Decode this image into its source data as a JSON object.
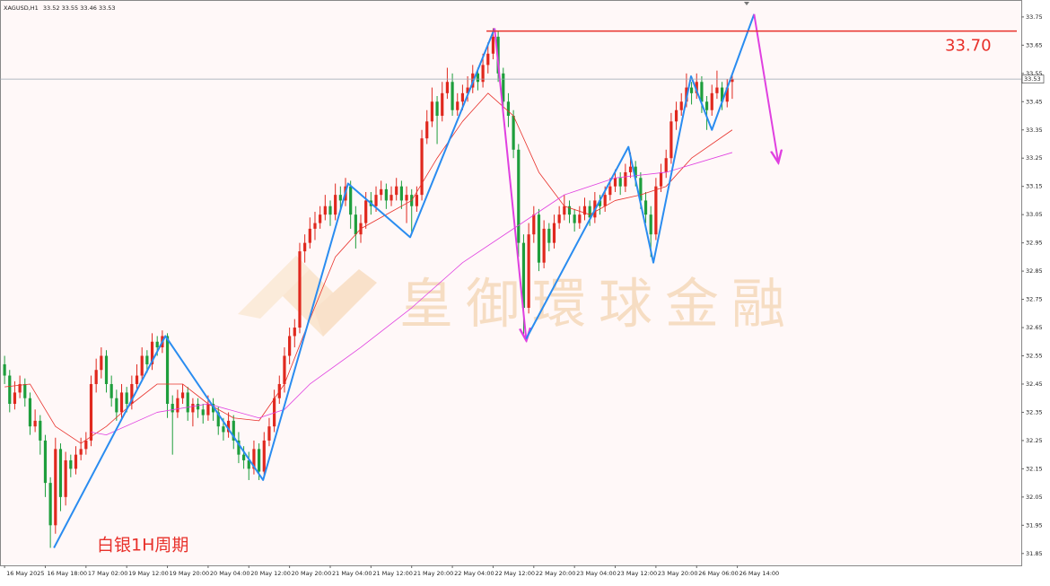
{
  "chart_data": {
    "type": "candlestick",
    "symbol": "XAGUSD,H1",
    "ylim": [
      31.808,
      33.81
    ],
    "yticks": [
      31.85,
      31.95,
      32.05,
      32.15,
      32.25,
      32.35,
      32.45,
      32.55,
      32.65,
      32.75,
      32.85,
      32.95,
      33.05,
      33.15,
      33.25,
      33.35,
      33.45,
      33.55,
      33.65,
      33.75
    ],
    "xlim": [
      -0.9,
      199.8
    ],
    "xticks": [
      {
        "value": 0,
        "label": "16 May 2025"
      },
      {
        "value": 8,
        "label": "16 May 18:00"
      },
      {
        "value": 16,
        "label": "17 May 02:00"
      },
      {
        "value": 24,
        "label": "19 May 12:00"
      },
      {
        "value": 32,
        "label": "19 May 20:00"
      },
      {
        "value": 40,
        "label": "20 May 04:00"
      },
      {
        "value": 48,
        "label": "20 May 12:00"
      },
      {
        "value": 56,
        "label": "20 May 20:00"
      },
      {
        "value": 64,
        "label": "21 May 04:00"
      },
      {
        "value": 72,
        "label": "21 May 12:00"
      },
      {
        "value": 80,
        "label": "21 May 20:00"
      },
      {
        "value": 88,
        "label": "22 May 04:00"
      },
      {
        "value": 96,
        "label": "22 May 12:00"
      },
      {
        "value": 104,
        "label": "22 May 20:00"
      },
      {
        "value": 112,
        "label": "23 May 04:00"
      },
      {
        "value": 120,
        "label": "23 May 12:00"
      },
      {
        "value": 128,
        "label": "23 May 20:00"
      },
      {
        "value": 136,
        "label": "26 May 06:00"
      },
      {
        "value": 144,
        "label": "26 May 14:00"
      }
    ],
    "up_color": "#e0281e",
    "down_color": "#1e9e3c",
    "candles": [
      [
        32.52,
        32.55,
        32.45,
        32.48
      ],
      [
        32.48,
        32.5,
        32.35,
        32.38
      ],
      [
        32.38,
        32.46,
        32.36,
        32.42
      ],
      [
        32.42,
        32.48,
        32.4,
        32.45
      ],
      [
        32.45,
        32.47,
        32.37,
        32.4
      ],
      [
        32.4,
        32.42,
        32.27,
        32.3
      ],
      [
        32.3,
        32.36,
        32.28,
        32.32
      ],
      [
        32.32,
        32.34,
        32.2,
        32.25
      ],
      [
        32.25,
        32.27,
        32.05,
        32.1
      ],
      [
        32.1,
        32.12,
        31.87,
        31.95
      ],
      [
        31.95,
        32.26,
        31.92,
        32.22
      ],
      [
        32.22,
        32.24,
        32.0,
        32.05
      ],
      [
        32.05,
        32.21,
        32.02,
        32.18
      ],
      [
        32.18,
        32.2,
        32.12,
        32.15
      ],
      [
        32.15,
        32.23,
        32.13,
        32.2
      ],
      [
        32.2,
        32.26,
        32.18,
        32.22
      ],
      [
        32.22,
        32.28,
        32.2,
        32.25
      ],
      [
        32.25,
        32.48,
        32.23,
        32.45
      ],
      [
        32.45,
        32.54,
        32.42,
        32.5
      ],
      [
        32.5,
        32.58,
        32.47,
        32.55
      ],
      [
        32.55,
        32.57,
        32.42,
        32.45
      ],
      [
        32.45,
        32.48,
        32.37,
        32.4
      ],
      [
        32.4,
        32.43,
        32.32,
        32.35
      ],
      [
        32.35,
        32.45,
        32.33,
        32.42
      ],
      [
        32.42,
        32.44,
        32.35,
        32.38
      ],
      [
        32.38,
        32.48,
        32.36,
        32.45
      ],
      [
        32.45,
        32.52,
        32.43,
        32.48
      ],
      [
        32.48,
        32.58,
        32.46,
        32.55
      ],
      [
        32.55,
        32.57,
        32.49,
        32.52
      ],
      [
        32.52,
        32.63,
        32.5,
        32.6
      ],
      [
        32.6,
        32.62,
        32.55,
        32.58
      ],
      [
        32.58,
        32.64,
        32.56,
        32.62
      ],
      [
        32.62,
        32.63,
        32.33,
        32.38
      ],
      [
        32.38,
        32.41,
        32.2,
        32.35
      ],
      [
        32.35,
        32.43,
        32.33,
        32.4
      ],
      [
        32.4,
        32.45,
        32.38,
        32.42
      ],
      [
        32.42,
        32.44,
        32.32,
        32.35
      ],
      [
        32.35,
        32.4,
        32.3,
        32.38
      ],
      [
        32.38,
        32.4,
        32.33,
        32.36
      ],
      [
        32.36,
        32.38,
        32.31,
        32.34
      ],
      [
        32.34,
        32.41,
        32.32,
        32.38
      ],
      [
        32.38,
        32.4,
        32.32,
        32.35
      ],
      [
        32.35,
        32.37,
        32.27,
        32.3
      ],
      [
        32.3,
        32.33,
        32.25,
        32.28
      ],
      [
        32.28,
        32.35,
        32.26,
        32.32
      ],
      [
        32.32,
        32.34,
        32.22,
        32.25
      ],
      [
        32.25,
        32.28,
        32.17,
        32.2
      ],
      [
        32.2,
        32.23,
        32.15,
        32.18
      ],
      [
        32.18,
        32.21,
        32.11,
        32.15
      ],
      [
        32.15,
        32.25,
        32.13,
        32.22
      ],
      [
        32.22,
        32.24,
        32.11,
        32.14
      ],
      [
        32.14,
        32.28,
        32.12,
        32.25
      ],
      [
        32.25,
        32.33,
        32.23,
        32.3
      ],
      [
        32.3,
        32.43,
        32.28,
        32.4
      ],
      [
        32.4,
        32.48,
        32.38,
        32.45
      ],
      [
        32.45,
        32.58,
        32.42,
        32.55
      ],
      [
        32.55,
        32.65,
        32.52,
        32.62
      ],
      [
        32.62,
        32.68,
        32.58,
        32.65
      ],
      [
        32.65,
        32.95,
        32.63,
        32.92
      ],
      [
        32.92,
        32.98,
        32.88,
        32.95
      ],
      [
        32.95,
        33.04,
        32.93,
        33.0
      ],
      [
        33.0,
        33.06,
        32.96,
        33.02
      ],
      [
        33.02,
        33.08,
        33.0,
        33.05
      ],
      [
        33.05,
        33.12,
        33.03,
        33.08
      ],
      [
        33.08,
        33.1,
        33.01,
        33.05
      ],
      [
        33.05,
        33.16,
        33.03,
        33.12
      ],
      [
        33.12,
        33.15,
        33.06,
        33.1
      ],
      [
        33.1,
        33.18,
        33.08,
        33.15
      ],
      [
        33.15,
        33.17,
        33.0,
        33.05
      ],
      [
        33.05,
        33.08,
        32.93,
        32.98
      ],
      [
        32.98,
        33.05,
        32.95,
        33.02
      ],
      [
        33.02,
        33.13,
        33.0,
        33.1
      ],
      [
        33.1,
        33.13,
        33.05,
        33.08
      ],
      [
        33.08,
        33.15,
        33.06,
        33.12
      ],
      [
        33.12,
        33.17,
        33.1,
        33.14
      ],
      [
        33.14,
        33.16,
        33.07,
        33.1
      ],
      [
        33.1,
        33.15,
        33.08,
        33.12
      ],
      [
        33.12,
        33.18,
        33.1,
        33.15
      ],
      [
        33.15,
        33.17,
        33.07,
        33.1
      ],
      [
        33.1,
        33.15,
        33.02,
        33.12
      ],
      [
        33.12,
        33.14,
        32.98,
        33.08
      ],
      [
        33.08,
        33.15,
        33.06,
        33.12
      ],
      [
        33.12,
        33.35,
        33.1,
        33.32
      ],
      [
        33.32,
        33.42,
        33.3,
        33.38
      ],
      [
        33.38,
        33.5,
        33.36,
        33.45
      ],
      [
        33.45,
        33.47,
        33.3,
        33.4
      ],
      [
        33.4,
        33.52,
        33.38,
        33.48
      ],
      [
        33.48,
        33.57,
        33.46,
        33.52
      ],
      [
        33.52,
        33.55,
        33.4,
        33.42
      ],
      [
        33.42,
        33.48,
        33.4,
        33.45
      ],
      [
        33.45,
        33.51,
        33.42,
        33.48
      ],
      [
        33.48,
        33.54,
        33.45,
        33.5
      ],
      [
        33.5,
        33.58,
        33.48,
        33.55
      ],
      [
        33.55,
        33.57,
        33.49,
        33.52
      ],
      [
        33.52,
        33.62,
        33.5,
        33.58
      ],
      [
        33.58,
        33.66,
        33.55,
        33.62
      ],
      [
        33.62,
        33.71,
        33.6,
        33.68
      ],
      [
        33.68,
        33.7,
        33.52,
        33.55
      ],
      [
        33.55,
        33.57,
        33.42,
        33.45
      ],
      [
        33.45,
        33.48,
        33.36,
        33.4
      ],
      [
        33.4,
        33.42,
        33.25,
        33.28
      ],
      [
        33.28,
        33.3,
        32.9,
        32.95
      ],
      [
        32.95,
        32.98,
        32.62,
        32.72
      ],
      [
        32.72,
        33.02,
        32.7,
        32.98
      ],
      [
        32.98,
        33.08,
        32.95,
        33.05
      ],
      [
        33.05,
        33.07,
        32.85,
        32.88
      ],
      [
        32.88,
        33.03,
        32.86,
        33.0
      ],
      [
        33.0,
        33.02,
        32.92,
        32.95
      ],
      [
        32.95,
        33.05,
        32.93,
        33.02
      ],
      [
        33.02,
        33.08,
        33.0,
        33.05
      ],
      [
        33.05,
        33.12,
        33.03,
        33.08
      ],
      [
        33.08,
        33.1,
        33.02,
        33.05
      ],
      [
        33.05,
        33.07,
        32.99,
        33.02
      ],
      [
        33.02,
        33.08,
        33.0,
        33.05
      ],
      [
        33.05,
        33.11,
        33.03,
        33.08
      ],
      [
        33.08,
        33.1,
        33.01,
        33.04
      ],
      [
        33.04,
        33.13,
        33.02,
        33.1
      ],
      [
        33.1,
        33.12,
        33.05,
        33.08
      ],
      [
        33.08,
        33.15,
        33.06,
        33.12
      ],
      [
        33.12,
        33.18,
        33.1,
        33.15
      ],
      [
        33.15,
        33.21,
        33.13,
        33.18
      ],
      [
        33.18,
        33.2,
        33.12,
        33.15
      ],
      [
        33.15,
        33.23,
        33.13,
        33.2
      ],
      [
        33.2,
        33.27,
        33.18,
        33.22
      ],
      [
        33.22,
        33.24,
        33.15,
        33.18
      ],
      [
        33.18,
        33.2,
        33.07,
        33.1
      ],
      [
        33.1,
        33.13,
        33.02,
        33.05
      ],
      [
        33.05,
        33.08,
        32.9,
        32.98
      ],
      [
        32.98,
        33.18,
        32.96,
        33.15
      ],
      [
        33.15,
        33.23,
        33.13,
        33.2
      ],
      [
        33.2,
        33.28,
        33.18,
        33.25
      ],
      [
        33.25,
        33.41,
        33.23,
        33.38
      ],
      [
        33.38,
        33.45,
        33.35,
        33.42
      ],
      [
        33.42,
        33.48,
        33.4,
        33.45
      ],
      [
        33.45,
        33.55,
        33.43,
        33.5
      ],
      [
        33.5,
        33.52,
        33.44,
        33.48
      ],
      [
        33.48,
        33.55,
        33.46,
        33.52
      ],
      [
        33.52,
        33.54,
        33.41,
        33.45
      ],
      [
        33.45,
        33.47,
        33.35,
        33.42
      ],
      [
        33.42,
        33.51,
        33.4,
        33.48
      ],
      [
        33.48,
        33.56,
        33.46,
        33.5
      ],
      [
        33.5,
        33.52,
        33.42,
        33.45
      ],
      [
        33.45,
        33.53,
        33.43,
        33.5
      ],
      [
        33.52,
        33.55,
        33.46,
        33.53
      ]
    ],
    "lines": [
      {
        "color": "#e8302a",
        "width": 0.8,
        "x": [
          0,
          5,
          10,
          15,
          20,
          25,
          30,
          35,
          40,
          45,
          50,
          55,
          60,
          65,
          70,
          75,
          80,
          85,
          90,
          95,
          100,
          105,
          110,
          115,
          120,
          125,
          130,
          135,
          143
        ],
        "values": [
          32.44,
          32.45,
          32.3,
          32.24,
          32.3,
          32.38,
          32.45,
          32.45,
          32.38,
          32.33,
          32.32,
          32.45,
          32.68,
          32.9,
          33.0,
          33.05,
          33.1,
          33.25,
          33.38,
          33.48,
          33.4,
          33.2,
          33.08,
          33.05,
          33.1,
          33.12,
          33.15,
          33.25,
          33.35
        ]
      },
      {
        "color": "#e040e0",
        "width": 0.8,
        "x": [
          17,
          20,
          30,
          40,
          50,
          55,
          60,
          70,
          80,
          90,
          100,
          110,
          120,
          130,
          143
        ],
        "values": [
          32.28,
          32.27,
          32.35,
          32.38,
          32.33,
          32.36,
          32.45,
          32.58,
          32.72,
          32.88,
          33.0,
          33.12,
          33.18,
          33.2,
          33.27
        ]
      },
      {
        "color": "#2a8cf0",
        "width": 2,
        "x": [
          9.7,
          31.6,
          50.8,
          67.5,
          79.7,
          96.3
        ],
        "values": [
          31.87,
          32.62,
          32.11,
          33.16,
          32.97,
          33.71
        ]
      },
      {
        "color": "#e040e0",
        "width": 2,
        "arrow": true,
        "x": [
          96.3,
          102.5
        ],
        "values": [
          33.71,
          32.61
        ]
      },
      {
        "color": "#2a8cf0",
        "width": 2,
        "x": [
          102.5,
          122.6,
          127.5,
          134.9,
          139,
          147.3
        ],
        "values": [
          32.61,
          33.29,
          32.88,
          33.54,
          33.35,
          33.76
        ]
      },
      {
        "color": "#e040e0",
        "width": 2,
        "arrow": true,
        "x": [
          147.3,
          152
        ],
        "values": [
          33.76,
          33.24
        ]
      }
    ],
    "level": {
      "value": 33.7,
      "label": "33.70",
      "from": 94.7,
      "color": "#e8302a"
    },
    "watermark": "皇御環球金融",
    "annotation": "白银1H周期"
  }
}
